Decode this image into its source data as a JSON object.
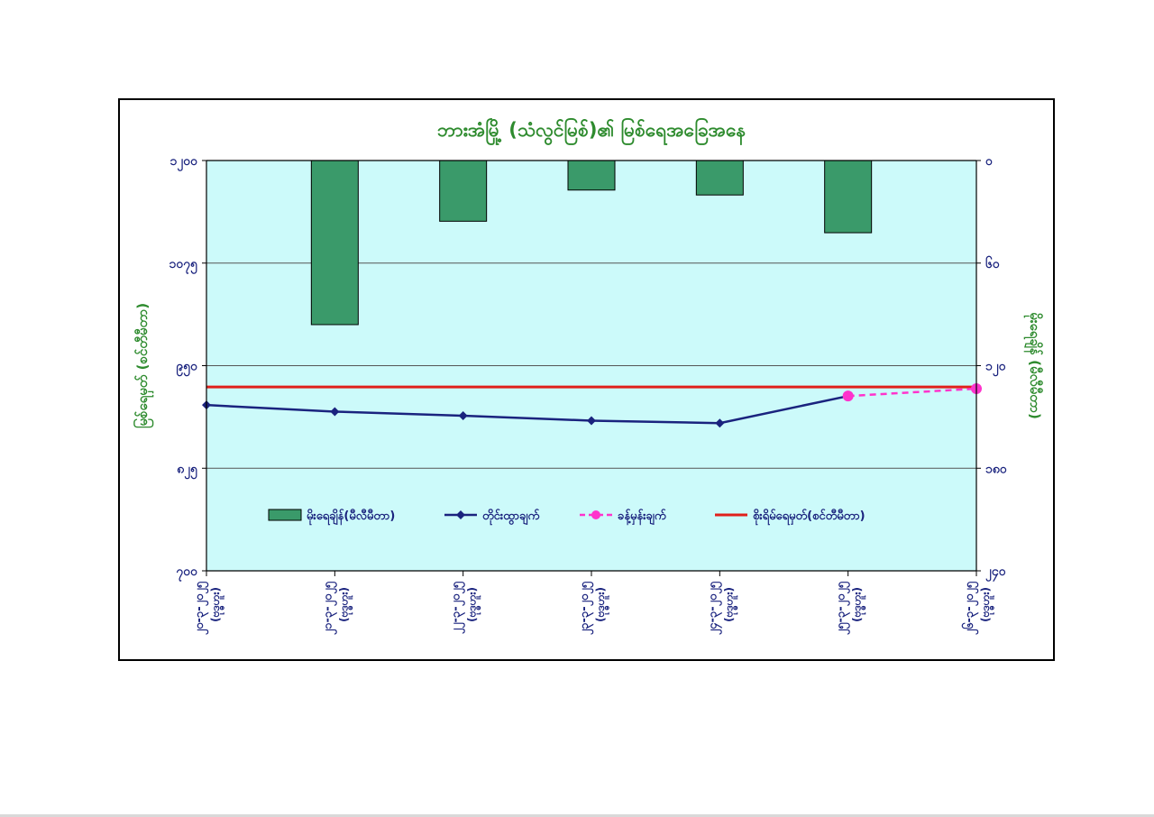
{
  "chart_data": {
    "type": "bar+line",
    "title": "ဘားအံမြို့ (သံလွင်မြစ်)၏ မြစ်ရေအခြေအနေ",
    "ylabel_left": "မြစ်ရေမှတ် (စင်တီမီတာ)",
    "ylabel_right": "မိုးရေချိန် (မီလီမီတာ)",
    "left_axis": {
      "range": [
        700,
        1200
      ],
      "ticks": [
        "၇၀၀",
        "၈၂၅",
        "၉၅၀",
        "၁၀၇၅",
        "၁၂၀၀"
      ]
    },
    "right_axis": {
      "range": [
        0,
        250
      ],
      "inverted": true,
      "ticks": [
        "၀",
        "၆၀",
        "၁၂၀",
        "၁၈၀",
        "၂၄၀"
      ]
    },
    "categories": [
      [
        "၂၀-၃-၂၀၂၅",
        "(ဗုဒ္ဓဟူး)"
      ],
      [
        "၂၁-၃-၂၀၂၅",
        "(ဗုဒ္ဓဟူး)"
      ],
      [
        "၂၂-၃-၂၀၂၅",
        "(ဗုဒ္ဓဟူး)"
      ],
      [
        "၂၃-၃-၂၀၂၅",
        "(ဗုဒ္ဓဟူး)"
      ],
      [
        "၂၄-၃-၂၀၂၅",
        "(ဗုဒ္ဓဟူး)"
      ],
      [
        "၂၅-၃-၂၀၂၅",
        "(ဗုဒ္ဓဟူး)"
      ],
      [
        "၂၆-၃-၂၀၂၅",
        "(ဗုဒ္ဓဟူး)"
      ]
    ],
    "series": [
      {
        "name": "မိုးရေချိန်(မီလီမီတာ)",
        "type": "bar",
        "axis": "right",
        "color": "#3a9a6a",
        "values": [
          0,
          100,
          37,
          18,
          21,
          44,
          0
        ]
      },
      {
        "name": "တိုင်းထွာချက်",
        "type": "line",
        "axis": "left",
        "color": "#1a237e",
        "values": [
          902,
          894,
          889,
          883,
          880,
          913,
          null
        ]
      },
      {
        "name": "ခန့်မှန်းချက်",
        "type": "line-dashed",
        "axis": "left",
        "color": "#ff33cc",
        "values": [
          null,
          null,
          null,
          null,
          null,
          913,
          922
        ]
      },
      {
        "name": "စိုးရိမ်ရေမှတ်(စင်တီမီတာ)",
        "type": "reference",
        "axis": "left",
        "color": "#e0201b",
        "value": 924
      }
    ],
    "grid": true,
    "legend_position": "bottom-inside",
    "colors": {
      "plot_background": "#ccfafa",
      "title": "#2e8b2e",
      "axis_labels": "#2e8b2e",
      "tick_labels": "#1a237e"
    }
  }
}
